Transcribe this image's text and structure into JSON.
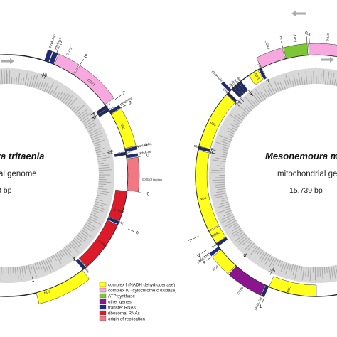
{
  "left_map": {
    "species": "ra tritaenia",
    "subtitle": "al genome",
    "size": "3 bp",
    "genes": [
      "tRNA-Asp",
      "tRNA-Lys",
      "COX2",
      "COX1",
      "tRNA-Tyr",
      "tRNA-Cys",
      "tRNA-Trp",
      "ND2",
      "tRNA-Met",
      "tRNA-Gln",
      "tRNA-Ile",
      "control region",
      "s-rRNA",
      "tRNA-Val",
      "l-rRNA",
      "tRNA-Leu",
      "ND1"
    ],
    "numbers": [
      "2",
      "-5",
      "-1",
      "0",
      "-8",
      "7",
      "6",
      "-8",
      "12",
      "0",
      "0",
      "0",
      "0",
      "1",
      "1"
    ]
  },
  "right_map": {
    "species": "Mesonemoura me",
    "subtitle": "mitochondrial ge",
    "size": "15,739 bp",
    "genes": [
      "COX3",
      "tRNA-Gly",
      "ND3",
      "tRNA-Ala",
      "tRNA-Arg",
      "tRNA-Asn",
      "tRNA-Ser",
      "tRNA-Glu",
      "tRNA-Phe",
      "ND5",
      "tRNA-His",
      "ND4",
      "ND4L",
      "tRNA-Pro",
      "tRNA-Thr",
      "ND6",
      "CYTB",
      "tRNA-Ser",
      "ND1",
      "ATP8",
      "ATP6"
    ],
    "numbers": [
      "-7",
      "-1",
      "-1",
      "0",
      "-1",
      "2",
      "-2",
      "0",
      "0",
      "-7",
      "-1",
      "1",
      "8",
      "0",
      "-35",
      "1",
      "0"
    ]
  },
  "legend": {
    "items": [
      {
        "label": "complex I (NADH dehydrogenase)",
        "color": "#ffff1c"
      },
      {
        "label": "complex IV (cytochrome c oxidase)",
        "color": "#f7a8df"
      },
      {
        "label": "ATP synthase",
        "color": "#7ec636"
      },
      {
        "label": "other genes",
        "color": "#8b158f"
      },
      {
        "label": "transfer RNAs",
        "color": "#1e2b78"
      },
      {
        "label": "ribosomal RNAs",
        "color": "#dd1a2a"
      },
      {
        "label": "origin of replication",
        "color": "#f17883"
      }
    ]
  },
  "colors": {
    "complex_I": "#ffff1c",
    "complex_IV": "#f7a8df",
    "atp": "#7ec636",
    "other": "#8b158f",
    "trna": "#1e2b78",
    "rrna": "#dd1a2a",
    "origin": "#f17883",
    "gc_ring": "#c8c8c8"
  }
}
